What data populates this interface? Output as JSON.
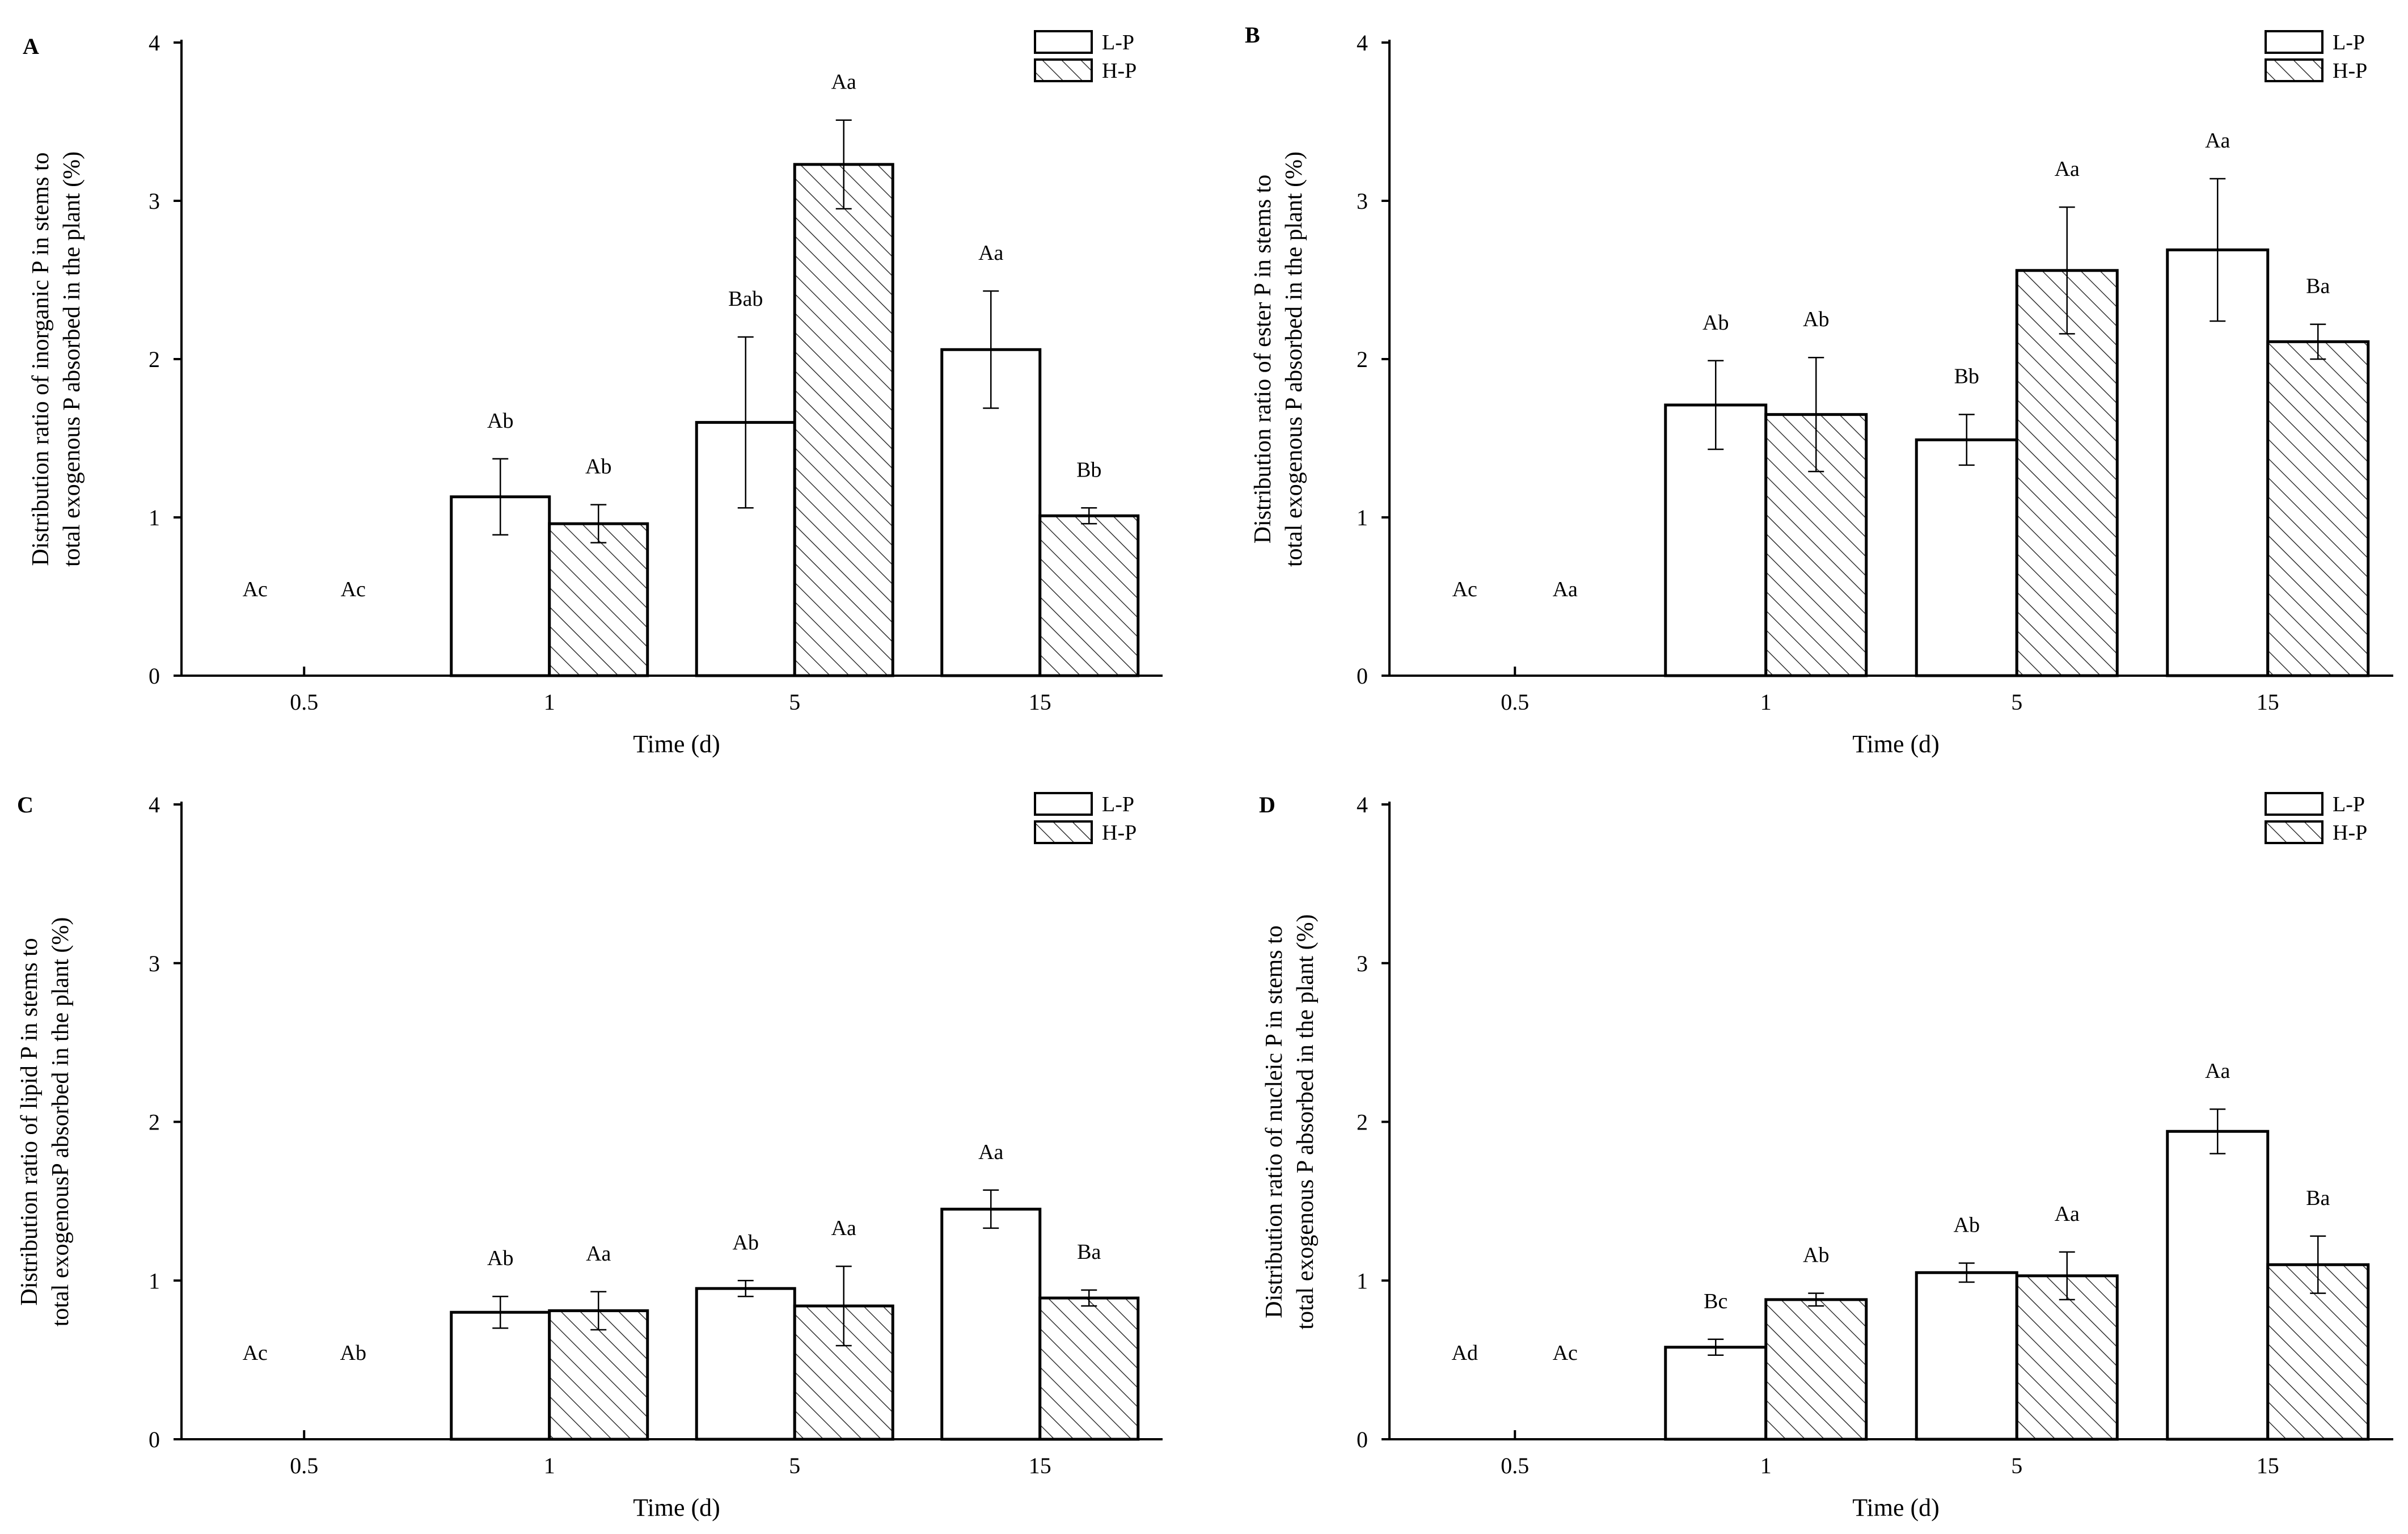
{
  "figure": {
    "legend_entries": [
      "L-P",
      "H-P"
    ],
    "colors": {
      "axis": "#000000",
      "bar_fill": "#ffffff",
      "hatch": "#333333"
    }
  },
  "chart_data": [
    {
      "type": "bar",
      "panel": "A",
      "title": "",
      "xlabel": "Time (d)",
      "ylabel": [
        "Distribution ratio of inorganic P in stems to",
        "total exogenous P absorbed in the plant (%)"
      ],
      "ylim": [
        0,
        4
      ],
      "yticks": [
        0,
        1,
        2,
        3,
        4
      ],
      "categories": [
        "0.5",
        "1",
        "5",
        "15"
      ],
      "legend": "top-right",
      "series": [
        {
          "name": "L-P",
          "values": [
            0,
            1.13,
            1.6,
            2.06
          ],
          "errors": [
            0,
            0.24,
            0.54,
            0.37
          ],
          "labels": [
            "Ac",
            "Ab",
            "Bab",
            "Aa"
          ]
        },
        {
          "name": "H-P",
          "values": [
            0,
            0.96,
            3.23,
            1.01
          ],
          "errors": [
            0,
            0.12,
            0.28,
            0.05
          ],
          "labels": [
            "Ac",
            "Ab",
            "Aa",
            "Bb"
          ]
        }
      ]
    },
    {
      "type": "bar",
      "panel": "B",
      "title": "",
      "xlabel": "Time (d)",
      "ylabel": [
        "Distribution ratio of ester P in stems to",
        "total exogenous P absorbed in the plant (%)"
      ],
      "ylim": [
        0,
        4
      ],
      "yticks": [
        0,
        1,
        2,
        3,
        4
      ],
      "categories": [
        "0.5",
        "1",
        "5",
        "15"
      ],
      "legend": "top-right",
      "series": [
        {
          "name": "L-P",
          "values": [
            0,
            1.71,
            1.49,
            2.69
          ],
          "errors": [
            0,
            0.28,
            0.16,
            0.45
          ],
          "labels": [
            "Ac",
            "Ab",
            "Bb",
            "Aa"
          ]
        },
        {
          "name": "H-P",
          "values": [
            0,
            1.65,
            2.56,
            2.11
          ],
          "errors": [
            0,
            0.36,
            0.4,
            0.11
          ],
          "labels": [
            "Aa",
            "Ab",
            "Aa",
            "Ba"
          ]
        }
      ]
    },
    {
      "type": "bar",
      "panel": "C",
      "title": "",
      "xlabel": "Time (d)",
      "ylabel": [
        "Distribution ratio of lipid P in stems to",
        "total exogenousP absorbed in the plant (%)"
      ],
      "ylim": [
        0,
        4
      ],
      "yticks": [
        0,
        1,
        2,
        3,
        4
      ],
      "categories": [
        "0.5",
        "1",
        "5",
        "15"
      ],
      "legend": "top-right",
      "series": [
        {
          "name": "L-P",
          "values": [
            0,
            0.8,
            0.95,
            1.45
          ],
          "errors": [
            0,
            0.1,
            0.05,
            0.12
          ],
          "labels": [
            "Ac",
            "Ab",
            "Ab",
            "Aa"
          ]
        },
        {
          "name": "H-P",
          "values": [
            0,
            0.81,
            0.84,
            0.89
          ],
          "errors": [
            0,
            0.12,
            0.25,
            0.05
          ],
          "labels": [
            "Ab",
            "Aa",
            "Aa",
            "Ba"
          ]
        }
      ]
    },
    {
      "type": "bar",
      "panel": "D",
      "title": "",
      "xlabel": "Time (d)",
      "ylabel": [
        "Distribution ratio of nucleic P in stems to",
        "total exogenous P absorbed in the plant (%)"
      ],
      "ylim": [
        0,
        4
      ],
      "yticks": [
        0,
        1,
        2,
        3,
        4
      ],
      "categories": [
        "0.5",
        "1",
        "5",
        "15"
      ],
      "legend": "top-right",
      "series": [
        {
          "name": "L-P",
          "values": [
            0,
            0.58,
            1.05,
            1.94
          ],
          "errors": [
            0,
            0.05,
            0.06,
            0.14
          ],
          "labels": [
            "Ad",
            "Bc",
            "Ab",
            "Aa"
          ]
        },
        {
          "name": "H-P",
          "values": [
            0,
            0.88,
            1.03,
            1.1
          ],
          "errors": [
            0,
            0.04,
            0.15,
            0.18
          ],
          "labels": [
            "Ac",
            "Ab",
            "Aa",
            "Ba"
          ]
        }
      ]
    }
  ]
}
